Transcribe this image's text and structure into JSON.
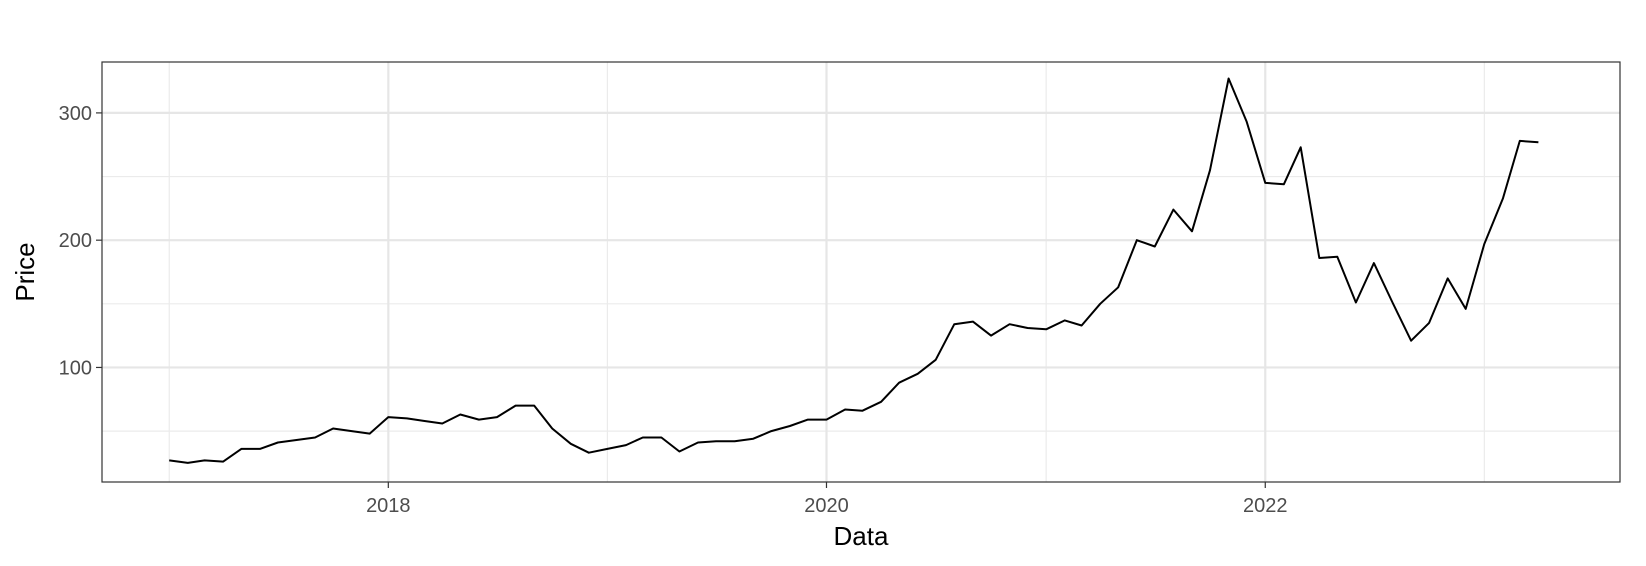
{
  "chart_data": {
    "type": "line",
    "title": "",
    "xlabel": "Data",
    "ylabel": "Price",
    "xlim": [
      "2016-09-11",
      "2023-08-15"
    ],
    "ylim": [
      10,
      340
    ],
    "x_ticks": [
      {
        "date": "2018-01-01",
        "label": "2018"
      },
      {
        "date": "2020-01-01",
        "label": "2020"
      },
      {
        "date": "2022-01-01",
        "label": "2022"
      }
    ],
    "y_ticks": [
      100,
      200,
      300
    ],
    "grid": true,
    "legend": "none",
    "series": [
      {
        "x": [
          "2017-01-01",
          "2017-02-01",
          "2017-03-01",
          "2017-04-01",
          "2017-05-01",
          "2017-06-01",
          "2017-07-01",
          "2017-08-01",
          "2017-09-01",
          "2017-10-01",
          "2017-11-01",
          "2017-12-01",
          "2018-01-01",
          "2018-02-01",
          "2018-03-01",
          "2018-04-01",
          "2018-05-01",
          "2018-06-01",
          "2018-07-01",
          "2018-08-01",
          "2018-09-01",
          "2018-10-01",
          "2018-11-01",
          "2018-12-01",
          "2019-01-01",
          "2019-02-01",
          "2019-03-01",
          "2019-04-01",
          "2019-05-01",
          "2019-06-01",
          "2019-07-01",
          "2019-08-01",
          "2019-09-01",
          "2019-10-01",
          "2019-11-01",
          "2019-12-01",
          "2020-01-01",
          "2020-02-01",
          "2020-03-01",
          "2020-04-01",
          "2020-05-01",
          "2020-06-01",
          "2020-07-01",
          "2020-08-01",
          "2020-09-01",
          "2020-10-01",
          "2020-11-01",
          "2020-12-01",
          "2021-01-01",
          "2021-02-01",
          "2021-03-01",
          "2021-04-01",
          "2021-05-01",
          "2021-06-01",
          "2021-07-01",
          "2021-08-01",
          "2021-09-01",
          "2021-10-01",
          "2021-11-01",
          "2021-12-01",
          "2022-01-01",
          "2022-02-01",
          "2022-03-01",
          "2022-04-01",
          "2022-05-01",
          "2022-06-01",
          "2022-07-01",
          "2022-08-01",
          "2022-09-01",
          "2022-10-01",
          "2022-11-01",
          "2022-12-01",
          "2023-01-01",
          "2023-02-01",
          "2023-03-01",
          "2023-04-01"
        ],
        "y": [
          27,
          25,
          27,
          26,
          36,
          36,
          41,
          43,
          45,
          52,
          50,
          48,
          61,
          60,
          58,
          56,
          63,
          59,
          61,
          70,
          70,
          52,
          40,
          33,
          36,
          39,
          45,
          45,
          34,
          41,
          42,
          42,
          44,
          50,
          54,
          59,
          59,
          67,
          66,
          73,
          88,
          95,
          106,
          134,
          136,
          125,
          134,
          131,
          130,
          137,
          133,
          150,
          163,
          200,
          195,
          224,
          207,
          255,
          327,
          293,
          245,
          244,
          273,
          186,
          187,
          151,
          182,
          151,
          121,
          135,
          170,
          146,
          197,
          233,
          278,
          277
        ]
      }
    ]
  }
}
